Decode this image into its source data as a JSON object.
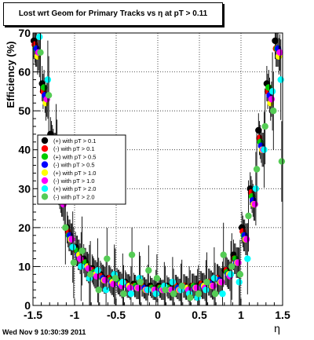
{
  "chart_data": {
    "type": "scatter",
    "title": "Lost wrt Geom for Primary Tracks vs    η at pT > 0.11",
    "xlabel": "η",
    "ylabel": "Efficiency (%)",
    "xlim": [
      -1.5,
      1.5
    ],
    "ylim": [
      0,
      70
    ],
    "xticks": [
      "-1.5",
      "-1",
      "-0.5",
      "0",
      "0.5",
      "1",
      "1.5"
    ],
    "yticks": [
      "0",
      "10",
      "20",
      "30",
      "40",
      "50",
      "60",
      "70"
    ],
    "grid": true,
    "legend_position": "middle-left",
    "series": [
      {
        "name": "(+) with pT > 0.1",
        "color": "#000000",
        "x": [
          -1.45,
          -1.35,
          -1.25,
          -1.15,
          -1.05,
          -0.95,
          -0.85,
          -0.75,
          -0.65,
          -0.55,
          -0.45,
          -0.35,
          -0.25,
          -0.15,
          -0.05,
          0.05,
          0.15,
          0.25,
          0.35,
          0.45,
          0.55,
          0.65,
          0.75,
          0.85,
          0.95,
          1.05,
          1.15,
          1.25,
          1.35,
          1.45
        ],
        "y": [
          68,
          57,
          44,
          30,
          20,
          15,
          12,
          9.5,
          8,
          7,
          6.5,
          6,
          5.5,
          5,
          5,
          5,
          5,
          5,
          5,
          5,
          5.5,
          6,
          7,
          9,
          13,
          20,
          30,
          45,
          57,
          68
        ]
      },
      {
        "name": "(-) with pT > 0.1",
        "color": "#ff0000",
        "x": [
          -1.45,
          -1.35,
          -1.25,
          -1.15,
          -1.05,
          -0.95,
          -0.85,
          -0.75,
          -0.65,
          -0.55,
          -0.45,
          -0.35,
          -0.25,
          -0.15,
          -0.05,
          0.05,
          0.15,
          0.25,
          0.35,
          0.45,
          0.55,
          0.65,
          0.75,
          0.85,
          0.95,
          1.05,
          1.15,
          1.25,
          1.35,
          1.45
        ],
        "y": [
          67,
          55,
          43,
          29,
          19,
          14,
          11,
          9,
          7.5,
          7,
          6,
          5.5,
          5,
          5,
          4.5,
          4.5,
          4.5,
          5,
          5,
          5,
          5.5,
          6,
          7,
          9,
          12,
          19,
          29,
          43,
          55,
          66
        ]
      },
      {
        "name": "(+) with pT > 0.5",
        "color": "#00cc00",
        "x": [
          -1.45,
          -1.35,
          -1.25,
          -1.15,
          -1.05,
          -0.95,
          -0.85,
          -0.75,
          -0.65,
          -0.55,
          -0.45,
          -0.35,
          -0.25,
          -0.15,
          -0.05,
          0.05,
          0.15,
          0.25,
          0.35,
          0.45,
          0.55,
          0.65,
          0.75,
          0.85,
          0.95,
          1.05,
          1.15,
          1.25,
          1.35,
          1.45
        ],
        "y": [
          66,
          56,
          42,
          28,
          18,
          14,
          11,
          8.5,
          7,
          6.5,
          6,
          5,
          5,
          4.5,
          4.5,
          4.5,
          4.5,
          4.5,
          4.5,
          5,
          5,
          5.5,
          6.5,
          8.5,
          12,
          18,
          28,
          42,
          56,
          66
        ]
      },
      {
        "name": "(-) with pT > 0.5",
        "color": "#0000ff",
        "x": [
          -1.45,
          -1.35,
          -1.25,
          -1.15,
          -1.05,
          -0.95,
          -0.85,
          -0.75,
          -0.65,
          -0.55,
          -0.45,
          -0.35,
          -0.25,
          -0.15,
          -0.05,
          0.05,
          0.15,
          0.25,
          0.35,
          0.45,
          0.55,
          0.65,
          0.75,
          0.85,
          0.95,
          1.05,
          1.15,
          1.25,
          1.35,
          1.45
        ],
        "y": [
          66,
          54,
          41,
          27,
          18,
          13,
          10,
          8,
          7,
          6,
          5.5,
          5,
          4.5,
          4.5,
          4,
          4,
          4,
          4.5,
          4.5,
          4.5,
          5,
          5.5,
          6.5,
          8,
          11,
          18,
          27,
          41,
          54,
          66
        ]
      },
      {
        "name": "(+) with pT > 1.0",
        "color": "#ffff00",
        "x": [
          -1.45,
          -1.35,
          -1.25,
          -1.15,
          -1.05,
          -0.95,
          -0.85,
          -0.75,
          -0.65,
          -0.55,
          -0.45,
          -0.35,
          -0.25,
          -0.15,
          -0.05,
          0.05,
          0.15,
          0.25,
          0.35,
          0.45,
          0.55,
          0.65,
          0.75,
          0.85,
          0.95,
          1.05,
          1.15,
          1.25,
          1.35,
          1.45
        ],
        "y": [
          64,
          52,
          40,
          27,
          17,
          13,
          10,
          8,
          6.5,
          6,
          5.5,
          5,
          4.5,
          4,
          4,
          4,
          4,
          4,
          4.5,
          4.5,
          5,
          5,
          6,
          8,
          11,
          17,
          26,
          40,
          52,
          64
        ]
      },
      {
        "name": "(-) with pT > 1.0",
        "color": "#ff00ff",
        "x": [
          -1.45,
          -1.35,
          -1.25,
          -1.15,
          -1.05,
          -0.95,
          -0.85,
          -0.75,
          -0.65,
          -0.55,
          -0.45,
          -0.35,
          -0.25,
          -0.15,
          -0.05,
          0.05,
          0.15,
          0.25,
          0.35,
          0.45,
          0.55,
          0.65,
          0.75,
          0.85,
          0.95,
          1.05,
          1.15,
          1.25,
          1.35,
          1.45
        ],
        "y": [
          65,
          53,
          40,
          26,
          17,
          12,
          9.5,
          7.5,
          6.5,
          5.5,
          5,
          4.5,
          4.5,
          4,
          4,
          4,
          4,
          4,
          4,
          4.5,
          4.5,
          5,
          6,
          7.5,
          11,
          17,
          26,
          40,
          53,
          65
        ]
      },
      {
        "name": "(+) with pT > 2.0",
        "color": "#00ffff",
        "x": [
          -1.45,
          -1.35,
          -1.25,
          -1.15,
          -1.05,
          -0.95,
          -0.85,
          -0.75,
          -0.65,
          -0.55,
          -0.45,
          -0.35,
          -0.25,
          -0.15,
          -0.05,
          0.05,
          0.15,
          0.25,
          0.35,
          0.45,
          0.55,
          0.65,
          0.75,
          0.85,
          0.95,
          1.05,
          1.15,
          1.25,
          1.35,
          1.45
        ],
        "y": [
          69,
          58,
          42,
          29,
          15,
          10,
          7,
          9,
          4,
          8,
          6,
          3,
          7,
          4,
          3,
          5,
          6,
          4,
          3,
          2,
          4,
          7,
          3,
          8,
          6,
          12,
          30,
          40,
          55,
          58
        ]
      },
      {
        "name": "(-) with pT > 2.0",
        "color": "#55cc55",
        "x": [
          -1.45,
          -1.35,
          -1.25,
          -1.15,
          -1.05,
          -0.95,
          -0.85,
          -0.75,
          -0.65,
          -0.55,
          -0.45,
          -0.35,
          -0.25,
          -0.15,
          -0.05,
          0.05,
          0.15,
          0.25,
          0.35,
          0.45,
          0.55,
          0.65,
          0.75,
          0.85,
          0.95,
          1.05,
          1.15,
          1.25,
          1.35,
          1.45
        ],
        "y": [
          65,
          54,
          38,
          20,
          11,
          14,
          8,
          4,
          12,
          7,
          3,
          13,
          6,
          9,
          7,
          4,
          3,
          5,
          2,
          3,
          6,
          3,
          13,
          10,
          8,
          23,
          35,
          46,
          50,
          37
        ]
      }
    ]
  },
  "timestamp": "Wed Nov  9 10:30:39 2011"
}
